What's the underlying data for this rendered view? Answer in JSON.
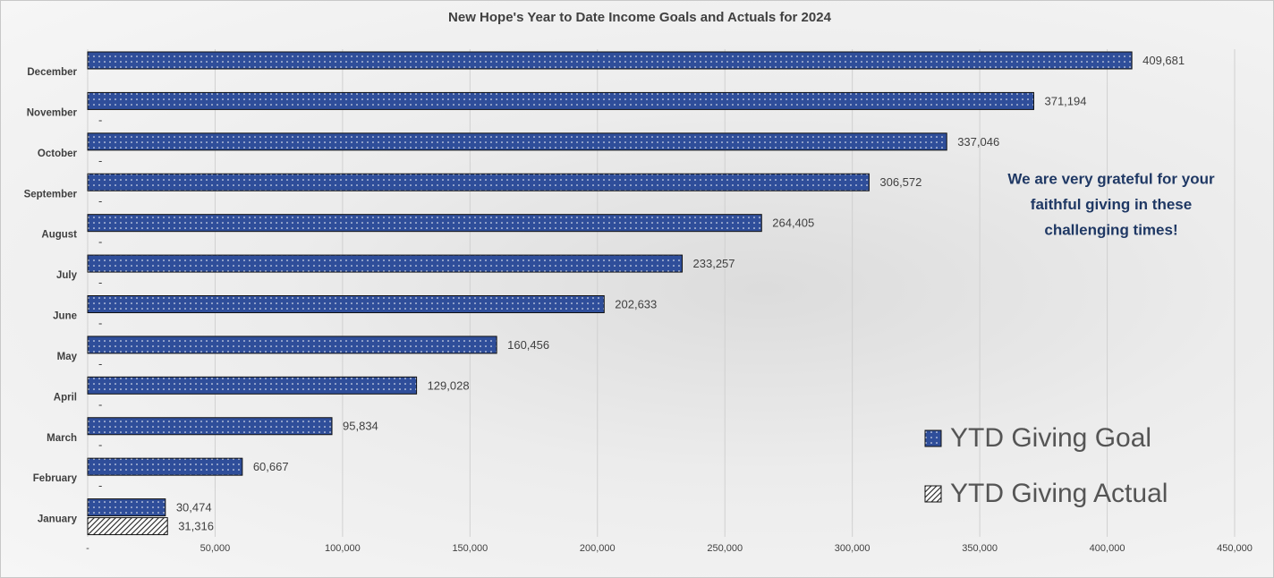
{
  "chart_data": {
    "type": "hbar",
    "title": "New Hope's Year to Date Income Goals and Actuals for 2024",
    "categories": [
      "January",
      "February",
      "March",
      "April",
      "May",
      "June",
      "July",
      "August",
      "September",
      "October",
      "November",
      "December"
    ],
    "series": [
      {
        "name": "YTD Giving Goal",
        "color": "#2f4e9a",
        "pattern": "dots",
        "values": [
          30474,
          60667,
          95834,
          129028,
          160456,
          202633,
          233257,
          264405,
          306572,
          337046,
          371194,
          409681
        ],
        "value_labels": [
          "30,474",
          "60,667",
          "95,834",
          "129,028",
          "160,456",
          "202,633",
          "233,257",
          "264,405",
          "306,572",
          "337,046",
          "371,194",
          "409,681"
        ]
      },
      {
        "name": "YTD Giving Actual",
        "color": "#333333",
        "pattern": "diagonal",
        "values": [
          31316,
          0,
          0,
          0,
          0,
          0,
          0,
          0,
          0,
          0,
          0,
          null
        ],
        "value_labels": [
          "31,316",
          "-",
          "-",
          "-",
          "-",
          "-",
          "-",
          "-",
          "-",
          "-",
          "-",
          null
        ]
      }
    ],
    "xlim": [
      0,
      450000
    ],
    "xticks": [
      {
        "value": 0,
        "label": "-"
      },
      {
        "value": 50000,
        "label": "50,000"
      },
      {
        "value": 100000,
        "label": "100,000"
      },
      {
        "value": 150000,
        "label": "150,000"
      },
      {
        "value": 200000,
        "label": "200,000"
      },
      {
        "value": 250000,
        "label": "250,000"
      },
      {
        "value": 300000,
        "label": "300,000"
      },
      {
        "value": 350000,
        "label": "350,000"
      },
      {
        "value": 400000,
        "label": "400,000"
      },
      {
        "value": 450000,
        "label": "450,000"
      }
    ],
    "grid": true,
    "legend": "right",
    "annotation": [
      "We are very grateful for your",
      "faithful giving in these",
      "challenging times!"
    ]
  }
}
